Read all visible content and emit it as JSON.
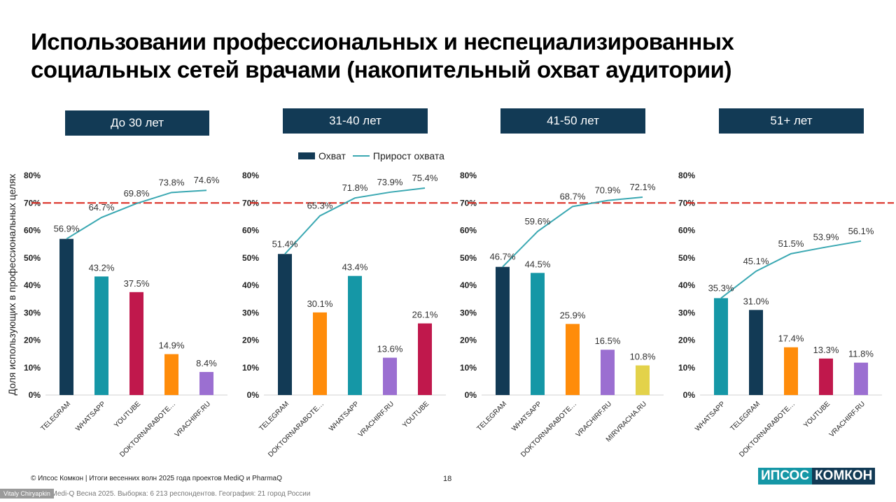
{
  "title": "Использовании профессиональных и неспециализированных социальных сетей врачами (накопительный охват аудитории)",
  "ylabel": "Доля использующих в профессиональных целях",
  "legend": {
    "bar": "Охват",
    "line": "Прирост охвата"
  },
  "colors": {
    "header_bg": "#123a55",
    "line": "#3aa8b2",
    "reference_line": "#d9261c"
  },
  "chart_data": [
    {
      "type": "bar",
      "group": "До 30 лет",
      "categories": [
        "TELEGRAM",
        "WHATSAPP",
        "YOUTUBE",
        "DOKTORNARABOTE…",
        "VRACHIRF.RU"
      ],
      "series": [
        {
          "name": "Охват",
          "values": [
            56.9,
            43.2,
            37.5,
            14.9,
            8.4
          ],
          "colors": [
            "#123a55",
            "#1597a6",
            "#c0184c",
            "#ff8c0a",
            "#9b6fd1"
          ]
        },
        {
          "name": "Прирост охвата",
          "type": "line",
          "values": [
            56.9,
            64.7,
            69.8,
            73.8,
            74.6
          ]
        }
      ],
      "reference_line": 70,
      "yticks": [
        "0%",
        "10%",
        "20%",
        "30%",
        "40%",
        "50%",
        "60%",
        "70%",
        "80%"
      ],
      "ylim": [
        0,
        80
      ]
    },
    {
      "type": "bar",
      "group": "31-40 лет",
      "categories": [
        "TELEGRAM",
        "DOKTORNARABOTE…",
        "WHATSAPP",
        "VRACHIRF.RU",
        "YOUTUBE"
      ],
      "series": [
        {
          "name": "Охват",
          "values": [
            51.4,
            30.1,
            43.4,
            13.6,
            26.1
          ],
          "colors": [
            "#123a55",
            "#ff8c0a",
            "#1597a6",
            "#9b6fd1",
            "#c0184c"
          ]
        },
        {
          "name": "Прирост охвата",
          "type": "line",
          "values": [
            51.4,
            65.3,
            71.8,
            73.9,
            75.4
          ]
        }
      ],
      "reference_line": 70,
      "yticks": [
        "0%",
        "10%",
        "20%",
        "30%",
        "40%",
        "50%",
        "60%",
        "70%",
        "80%"
      ],
      "ylim": [
        0,
        80
      ]
    },
    {
      "type": "bar",
      "group": "41-50 лет",
      "categories": [
        "TELEGRAM",
        "WHATSAPP",
        "DOKTORNARABOTE…",
        "VRACHIRF.RU",
        "MIRVRACHA.RU"
      ],
      "series": [
        {
          "name": "Охват",
          "values": [
            46.7,
            44.5,
            25.9,
            16.5,
            10.8
          ],
          "colors": [
            "#123a55",
            "#1597a6",
            "#ff8c0a",
            "#9b6fd1",
            "#e3d24a"
          ]
        },
        {
          "name": "Прирост охвата",
          "type": "line",
          "values": [
            46.7,
            59.6,
            68.7,
            70.9,
            72.1
          ]
        }
      ],
      "reference_line": 70,
      "yticks": [
        "0%",
        "10%",
        "20%",
        "30%",
        "40%",
        "50%",
        "60%",
        "70%",
        "80%"
      ],
      "ylim": [
        0,
        80
      ]
    },
    {
      "type": "bar",
      "group": "51+ лет",
      "categories": [
        "WHATSAPP",
        "TELEGRAM",
        "DOKTORNARABOTE…",
        "YOUTUBE",
        "VRACHIRF.RU"
      ],
      "series": [
        {
          "name": "Охват",
          "values": [
            35.3,
            31.0,
            17.4,
            13.3,
            11.8
          ],
          "colors": [
            "#1597a6",
            "#123a55",
            "#ff8c0a",
            "#c0184c",
            "#9b6fd1"
          ]
        },
        {
          "name": "Прирост охвата",
          "type": "line",
          "values": [
            35.3,
            45.1,
            51.5,
            53.9,
            56.1
          ]
        }
      ],
      "reference_line": 70,
      "yticks": [
        "0%",
        "10%",
        "20%",
        "30%",
        "40%",
        "50%",
        "60%",
        "70%",
        "80%"
      ],
      "ylim": [
        0,
        80
      ]
    }
  ],
  "footer": {
    "copyright": "© Ипсос Комкон | Итоги весенних волн 2025 года проектов MediQ и PharmaQ",
    "page": "18",
    "source": "ик: Medi-Q Весна 2025. Выборка: 6 213 респондентов. География: 21 город России",
    "presenter": "Vitaly Chiryapkin",
    "logo_left": "ИПСОС",
    "logo_right": "КОМКОН"
  }
}
